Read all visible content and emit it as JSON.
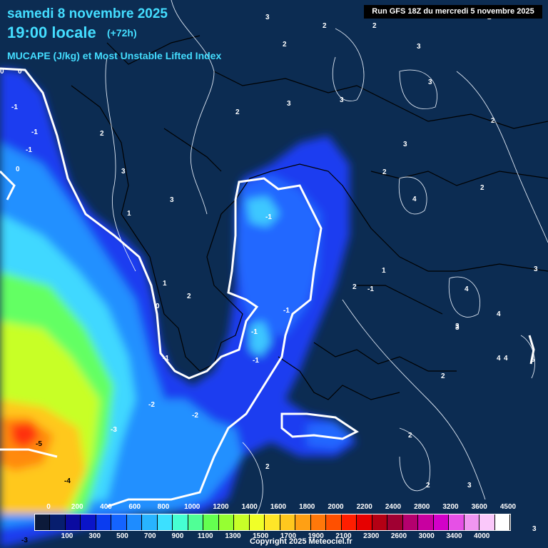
{
  "header": {
    "date": "samedi 8 novembre 2025",
    "time": "19:00 locale",
    "lead": "(+72h)",
    "parameter": "MUCAPE (J/kg) et Most Unstable Lifted Index",
    "run": "Run GFS 18Z du mercredi 5 novembre 2025"
  },
  "copyright": "Copyright 2025 Meteociel.fr",
  "legend": {
    "top_labels": [
      "0",
      "200",
      "400",
      "600",
      "800",
      "1000",
      "1200",
      "1400",
      "1600",
      "1800",
      "2000",
      "2200",
      "2400",
      "2800",
      "3200",
      "3600",
      "4500"
    ],
    "bottom_labels": [
      "100",
      "300",
      "500",
      "700",
      "900",
      "1100",
      "1300",
      "1500",
      "1700",
      "1900",
      "2100",
      "2300",
      "2600",
      "3000",
      "3400",
      "4000"
    ],
    "colors": [
      "#0c1a3a",
      "#071e6e",
      "#0a0aa0",
      "#0a14c8",
      "#0a3cf0",
      "#1464ff",
      "#1e8cff",
      "#28b4ff",
      "#3ce0ff",
      "#46ffd2",
      "#50ff96",
      "#64ff50",
      "#96ff32",
      "#c8ff28",
      "#f0ff28",
      "#ffe628",
      "#ffc81e",
      "#ffa014",
      "#ff780a",
      "#ff5000",
      "#ff1e00",
      "#e60000",
      "#b40014",
      "#a00032",
      "#b4006e",
      "#c800a0",
      "#d200c8",
      "#e650e6",
      "#f096f0",
      "#fac8fa",
      "#ffffff"
    ]
  },
  "lifted_index_labels": [
    "3",
    "2",
    "2",
    "2",
    "3",
    "2",
    "3",
    "3",
    "2",
    "0",
    "0",
    "-1",
    "-1",
    "-1",
    "0",
    "1",
    "2",
    "3",
    "3",
    "1",
    "2",
    "3",
    "3",
    "2",
    "2",
    "2",
    "2",
    "4",
    "3",
    "4",
    "4",
    "4",
    "4",
    "5",
    "-1",
    "-1",
    "-1",
    "-1",
    "-1",
    "0",
    "1",
    "2",
    "-1",
    "-2",
    "-2",
    "-3",
    "-5",
    "-4",
    "2",
    "2",
    "2",
    "3",
    "3",
    "3",
    "-3",
    "3"
  ]
}
